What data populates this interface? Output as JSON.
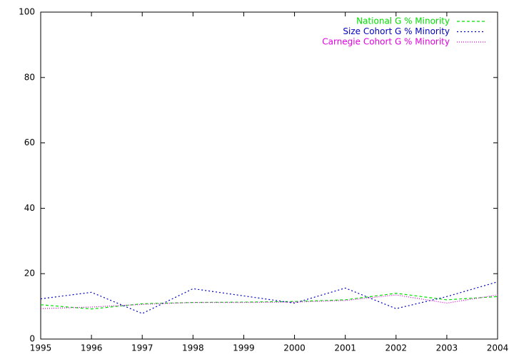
{
  "chart_data": {
    "type": "line",
    "x": [
      1995,
      1996,
      1997,
      1998,
      1999,
      2000,
      2001,
      2002,
      2003,
      2004
    ],
    "xlim": [
      1995,
      2004
    ],
    "xticks": [
      1995,
      1996,
      1997,
      1998,
      1999,
      2000,
      2001,
      2002,
      2003,
      2004
    ],
    "ylim": [
      0,
      100
    ],
    "yticks": [
      0,
      20,
      40,
      60,
      80,
      100
    ],
    "grid": false,
    "legend": "top-right",
    "series": [
      {
        "name": "National G % Minority",
        "color": "#00e000",
        "dash": "dashed",
        "values": [
          10.5,
          9.2,
          10.8,
          11.2,
          11.3,
          11.5,
          12,
          14,
          12,
          13
        ]
      },
      {
        "name": "Size Cohort G % Minority",
        "color": "#0000c0",
        "dash": "dotted",
        "values": [
          12.3,
          14.3,
          7.8,
          15.4,
          13.2,
          11,
          15.6,
          9.3,
          13,
          17.5
        ]
      },
      {
        "name": "Carnegie Cohort G % Minority",
        "color": "#e000e0",
        "dash": "fine",
        "values": [
          9.3,
          9.8,
          10.6,
          11.2,
          11.2,
          11.3,
          11.8,
          13.5,
          11,
          13.5
        ]
      }
    ]
  }
}
